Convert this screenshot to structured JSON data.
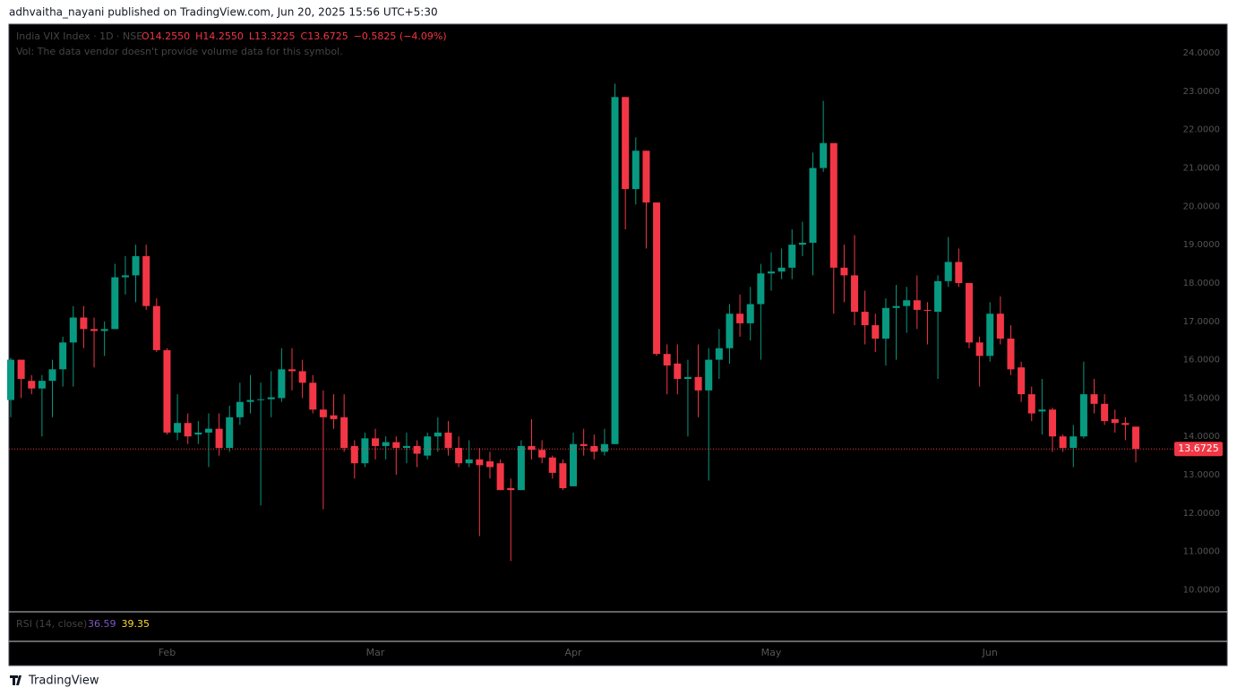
{
  "header": {
    "publisher": "adhvaitha_nayani published on TradingView.com, Jun 20, 2025 15:56 UTC+5:30"
  },
  "footer": {
    "brand": "TradingView"
  },
  "chart_data": {
    "type": "candlestick",
    "symbol": "India VIX Index · 1D · NSE",
    "ohlc_legend": [
      "O14.2550",
      "H14.2550",
      "L13.3225",
      "C13.6725",
      "−0.5825 (−4.09%)"
    ],
    "volume_note": "Vol: The data vendor doesn't provide volume data for this symbol.",
    "rsi": {
      "label": "RSI (14, close)",
      "values": [
        "36.59",
        "39.35"
      ],
      "colors": [
        "#7e57c2",
        "#fdd835"
      ]
    },
    "up_color": "#089981",
    "down_color": "#f23645",
    "last_price": {
      "value": 13.6725,
      "label": "13.6725"
    },
    "ylim": [
      9.45,
      24.75
    ],
    "yticks": [
      {
        "value": 10,
        "label": "10.0000"
      },
      {
        "value": 11,
        "label": "11.0000"
      },
      {
        "value": 12,
        "label": "12.0000"
      },
      {
        "value": 13,
        "label": "13.0000"
      },
      {
        "value": 14,
        "label": "14.0000"
      },
      {
        "value": 15,
        "label": "15.0000"
      },
      {
        "value": 16,
        "label": "16.0000"
      },
      {
        "value": 17,
        "label": "17.0000"
      },
      {
        "value": 18,
        "label": "18.0000"
      },
      {
        "value": 19,
        "label": "19.0000"
      },
      {
        "value": 20,
        "label": "20.0000"
      },
      {
        "value": 21,
        "label": "21.0000"
      },
      {
        "value": 22,
        "label": "22.0000"
      },
      {
        "value": 23,
        "label": "23.0000"
      },
      {
        "value": 24,
        "label": "24.0000"
      }
    ],
    "xticks": [
      {
        "value": 15,
        "label": "Feb"
      },
      {
        "value": 35,
        "label": "Mar"
      },
      {
        "value": 54,
        "label": "Apr"
      },
      {
        "value": 73,
        "label": "May"
      },
      {
        "value": 94,
        "label": "Jun"
      }
    ],
    "open": [
      14.95,
      16.0,
      15.45,
      15.25,
      15.45,
      15.75,
      16.45,
      17.1,
      16.8,
      16.75,
      16.8,
      18.15,
      18.2,
      18.7,
      17.4,
      16.25,
      14.1,
      14.35,
      14.05,
      14.1,
      14.2,
      13.7,
      14.5,
      14.9,
      14.95,
      14.97,
      15.0,
      15.75,
      15.7,
      15.4,
      14.7,
      14.55,
      14.5,
      13.75,
      13.3,
      13.95,
      13.75,
      13.85,
      13.7,
      13.75,
      13.5,
      14.0,
      14.1,
      13.7,
      13.3,
      13.4,
      13.35,
      13.3,
      12.65,
      12.6,
      13.75,
      13.65,
      13.45,
      13.3,
      12.7,
      13.8,
      13.75,
      13.6,
      13.8,
      22.85,
      20.45,
      21.45,
      20.1,
      16.15,
      15.9,
      15.5,
      15.55,
      15.2,
      16.0,
      16.3,
      17.2,
      16.95,
      17.45,
      18.25,
      18.3,
      18.4,
      19.0,
      19.05,
      21.0,
      21.65,
      18.4,
      18.2,
      17.25,
      16.9,
      16.55,
      17.35,
      17.4,
      17.55,
      17.3,
      17.25,
      18.05,
      18.55,
      18.0,
      16.45,
      16.1,
      17.2,
      16.55,
      15.8,
      15.1,
      14.65,
      14.7,
      14.0,
      13.7,
      14.0,
      15.1,
      14.85,
      14.45,
      14.35,
      14.255
    ],
    "high": [
      16.05,
      16.0,
      15.6,
      15.6,
      16.0,
      16.6,
      17.4,
      17.4,
      17.1,
      17.0,
      18.5,
      18.7,
      19.0,
      19.0,
      17.6,
      16.3,
      15.1,
      14.6,
      14.4,
      14.6,
      14.6,
      14.8,
      15.4,
      15.6,
      15.4,
      15.7,
      16.3,
      16.3,
      16.0,
      15.6,
      15.2,
      15.1,
      15.1,
      13.9,
      14.1,
      14.2,
      14.0,
      14.0,
      14.1,
      13.9,
      14.1,
      14.5,
      14.4,
      14.0,
      13.9,
      13.7,
      13.6,
      13.4,
      12.9,
      13.9,
      14.45,
      13.9,
      13.5,
      13.4,
      14.1,
      14.2,
      14.05,
      14.2,
      23.2,
      22.85,
      21.8,
      21.45,
      20.1,
      16.4,
      16.4,
      16.0,
      16.4,
      16.3,
      16.8,
      17.45,
      17.7,
      17.9,
      18.5,
      18.8,
      18.9,
      19.4,
      19.6,
      21.4,
      22.75,
      21.65,
      19.0,
      19.25,
      17.8,
      17.2,
      17.6,
      17.95,
      17.9,
      18.2,
      17.5,
      18.2,
      19.2,
      18.9,
      18.0,
      16.6,
      17.5,
      17.65,
      16.9,
      15.95,
      15.3,
      15.5,
      14.75,
      14.05,
      14.3,
      15.95,
      15.5,
      15.1,
      14.7,
      14.5,
      14.255
    ],
    "low": [
      14.5,
      15.0,
      15.1,
      14.0,
      14.5,
      15.3,
      15.3,
      16.3,
      15.8,
      16.1,
      16.8,
      17.7,
      17.5,
      17.3,
      16.2,
      14.05,
      13.9,
      13.8,
      13.8,
      13.2,
      13.5,
      13.6,
      14.3,
      14.6,
      12.2,
      14.5,
      14.9,
      15.2,
      15.0,
      14.6,
      12.1,
      14.2,
      13.6,
      12.9,
      13.2,
      13.4,
      13.4,
      13.0,
      13.3,
      13.2,
      13.4,
      13.6,
      13.5,
      13.2,
      13.2,
      11.4,
      12.9,
      12.6,
      10.75,
      12.6,
      13.4,
      13.3,
      12.9,
      12.6,
      12.7,
      13.5,
      13.4,
      13.5,
      13.8,
      19.4,
      20.05,
      18.9,
      16.1,
      15.1,
      15.1,
      14.0,
      14.5,
      12.85,
      15.5,
      15.9,
      16.6,
      16.5,
      16.0,
      17.8,
      18.1,
      18.1,
      18.7,
      18.2,
      20.9,
      17.2,
      17.5,
      16.9,
      16.4,
      16.2,
      15.85,
      16.0,
      16.7,
      16.8,
      16.4,
      15.5,
      17.9,
      17.9,
      16.3,
      15.3,
      15.95,
      16.4,
      15.6,
      14.9,
      14.4,
      14.05,
      13.6,
      13.6,
      13.2,
      13.95,
      14.6,
      14.3,
      14.1,
      13.9,
      13.3225
    ],
    "close": [
      16.0,
      15.5,
      15.25,
      15.45,
      15.75,
      16.45,
      17.1,
      16.8,
      16.75,
      16.8,
      18.15,
      18.2,
      18.7,
      17.4,
      16.25,
      14.1,
      14.35,
      14.0,
      14.1,
      14.2,
      13.7,
      14.5,
      14.9,
      14.95,
      14.97,
      15.02,
      15.75,
      15.7,
      15.4,
      14.7,
      14.5,
      14.45,
      13.7,
      13.3,
      13.95,
      13.75,
      13.85,
      13.7,
      13.75,
      13.55,
      14.0,
      14.1,
      13.7,
      13.3,
      13.4,
      13.25,
      13.2,
      12.6,
      12.6,
      13.75,
      13.65,
      13.45,
      13.05,
      12.65,
      13.8,
      13.75,
      13.6,
      13.8,
      22.85,
      20.45,
      21.45,
      20.1,
      16.15,
      15.85,
      15.5,
      15.55,
      15.2,
      16.0,
      16.3,
      17.2,
      16.95,
      17.45,
      18.25,
      18.3,
      18.4,
      19.0,
      19.05,
      21.0,
      21.65,
      18.4,
      18.2,
      17.25,
      16.9,
      16.55,
      17.35,
      17.4,
      17.55,
      17.3,
      17.28,
      18.05,
      18.55,
      18.0,
      16.45,
      16.1,
      17.2,
      16.55,
      15.75,
      15.1,
      14.6,
      14.7,
      14.0,
      13.7,
      14.0,
      15.1,
      14.85,
      14.4,
      14.35,
      14.3,
      13.6725
    ]
  }
}
